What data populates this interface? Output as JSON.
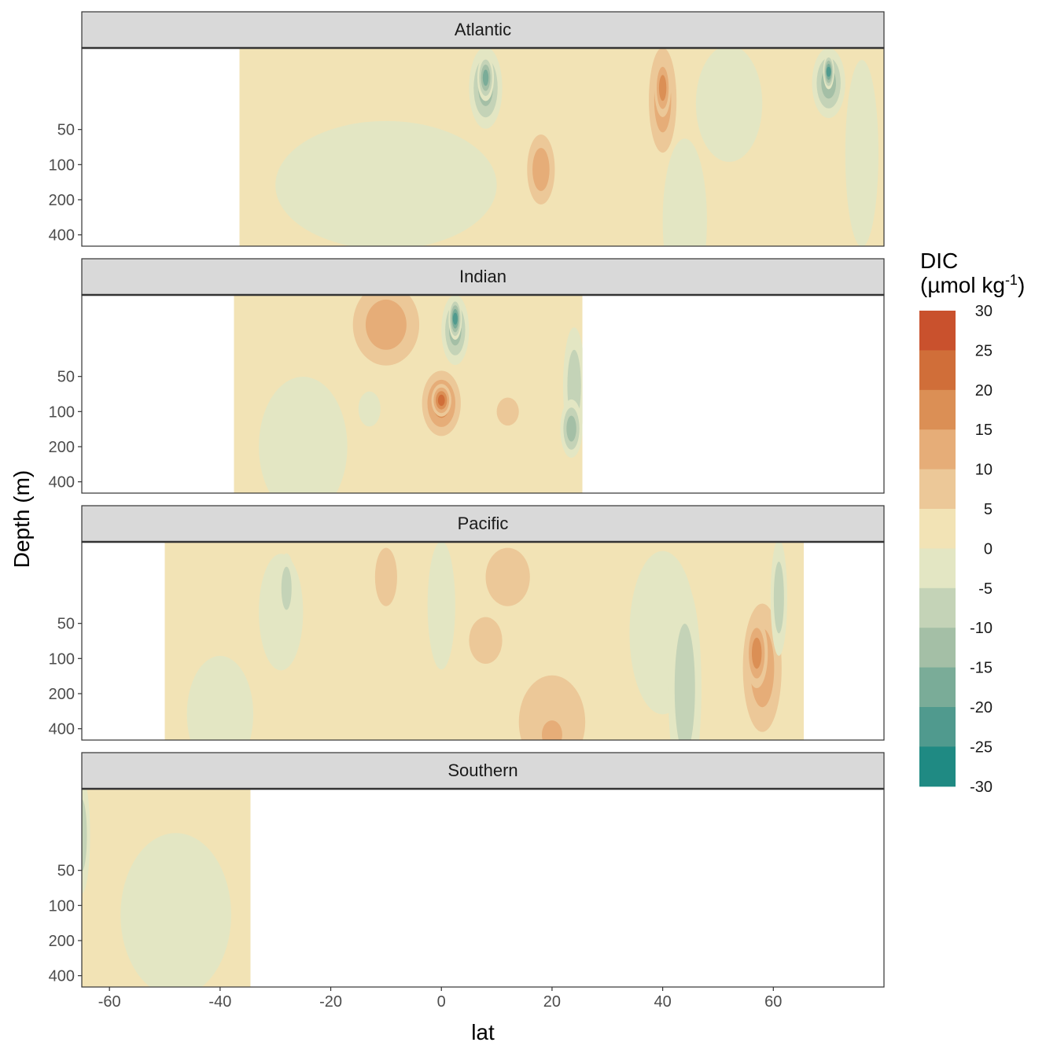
{
  "chart_data": {
    "type": "heatmap",
    "subtype": "filled-contour",
    "xlabel": "lat",
    "ylabel": "Depth (m)",
    "x_ticks": [
      -60,
      -40,
      -20,
      0,
      20,
      40,
      60
    ],
    "x_tick_labels": [
      "-60",
      "-40",
      "-20",
      "0",
      "20",
      "40",
      "60"
    ],
    "xlim": [
      -65,
      80
    ],
    "y_ticks": [
      50,
      100,
      200,
      400
    ],
    "y_tick_labels": [
      "50",
      "100",
      "200",
      "400"
    ],
    "y_scale": "log",
    "ylim": [
      10,
      500
    ],
    "y_reversed": true,
    "legend": {
      "title_line1": "DIC",
      "title_line2_prefix": "(µmol kg",
      "title_line2_sup": "-1",
      "title_line2_suffix": ")",
      "breaks": [
        30,
        25,
        20,
        15,
        10,
        5,
        0,
        -5,
        -10,
        -15,
        -20,
        -25,
        -30
      ],
      "break_labels": [
        "30",
        "25",
        "20",
        "15",
        "10",
        "5",
        "0",
        "-5",
        "-10",
        "-15",
        "-20",
        "-25",
        "-30"
      ],
      "colors": [
        "#c9512d",
        "#d06e39",
        "#db8f55",
        "#e6ad78",
        "#ecc898",
        "#f2e3b5",
        "#e3e6c3",
        "#c4d3b7",
        "#a4bfa6",
        "#7aac98",
        "#509a8e",
        "#1f8a83"
      ],
      "placement": "right"
    },
    "colors": {
      "base_positive": "#f2e3b5",
      "base_negative": "#e3e6c3",
      "panel_border": "#333333",
      "strip_fill": "#d9d9d9"
    },
    "facets": [
      {
        "name": "Atlantic",
        "lat_range": [
          -36.5,
          80
        ],
        "features": [
          {
            "lat": -10,
            "depth": 150,
            "dlat": 20,
            "ddepth": 0.55,
            "level": -1
          },
          {
            "lat": 8,
            "depth": 22,
            "dlat": 3,
            "ddepth": 0.35,
            "level": -3
          },
          {
            "lat": 8,
            "depth": 18,
            "dlat": 1.5,
            "ddepth": 0.2,
            "level": -4
          },
          {
            "lat": 18,
            "depth": 110,
            "dlat": 2.5,
            "ddepth": 0.3,
            "level": 2
          },
          {
            "lat": 40,
            "depth": 28,
            "dlat": 2.5,
            "ddepth": 0.45,
            "level": 2
          },
          {
            "lat": 40,
            "depth": 22,
            "dlat": 1.5,
            "ddepth": 0.25,
            "level": 3
          },
          {
            "lat": 44,
            "depth": 300,
            "dlat": 4,
            "ddepth": 0.7,
            "level": -1
          },
          {
            "lat": 52,
            "depth": 30,
            "dlat": 6,
            "ddepth": 0.5,
            "level": -1
          },
          {
            "lat": 70,
            "depth": 20,
            "dlat": 3,
            "ddepth": 0.3,
            "level": -3
          },
          {
            "lat": 70,
            "depth": 16,
            "dlat": 1,
            "ddepth": 0.15,
            "level": -5
          },
          {
            "lat": 76,
            "depth": 80,
            "dlat": 3,
            "ddepth": 0.8,
            "level": -1
          }
        ]
      },
      {
        "name": "Indian",
        "lat_range": [
          -37.5,
          25.5
        ],
        "features": [
          {
            "lat": -10,
            "depth": 18,
            "dlat": 6,
            "ddepth": 0.35,
            "level": 2
          },
          {
            "lat": -25,
            "depth": 200,
            "dlat": 8,
            "ddepth": 0.6,
            "level": -1
          },
          {
            "lat": 2.5,
            "depth": 20,
            "dlat": 2.5,
            "ddepth": 0.3,
            "level": -3
          },
          {
            "lat": 2.5,
            "depth": 16,
            "dlat": 1.2,
            "ddepth": 0.18,
            "level": -5
          },
          {
            "lat": 0,
            "depth": 85,
            "dlat": 3.5,
            "ddepth": 0.28,
            "level": 3
          },
          {
            "lat": 0,
            "depth": 80,
            "dlat": 1.8,
            "ddepth": 0.14,
            "level": 4
          },
          {
            "lat": 12,
            "depth": 100,
            "dlat": 2,
            "ddepth": 0.12,
            "level": 1
          },
          {
            "lat": 24,
            "depth": 60,
            "dlat": 2,
            "ddepth": 0.5,
            "level": -2
          },
          {
            "lat": 23.5,
            "depth": 140,
            "dlat": 2,
            "ddepth": 0.25,
            "level": -3
          },
          {
            "lat": -13,
            "depth": 95,
            "dlat": 2,
            "ddepth": 0.15,
            "level": -1
          }
        ]
      },
      {
        "name": "Pacific",
        "lat_range": [
          -50,
          65.5
        ],
        "features": [
          {
            "lat": -29,
            "depth": 40,
            "dlat": 4,
            "ddepth": 0.5,
            "level": -1
          },
          {
            "lat": -28,
            "depth": 25,
            "dlat": 1.5,
            "ddepth": 0.3,
            "level": -2
          },
          {
            "lat": 0,
            "depth": 35,
            "dlat": 2.5,
            "ddepth": 0.55,
            "level": -1
          },
          {
            "lat": -10,
            "depth": 20,
            "dlat": 2,
            "ddepth": 0.25,
            "level": 1
          },
          {
            "lat": 12,
            "depth": 20,
            "dlat": 4,
            "ddepth": 0.25,
            "level": 1
          },
          {
            "lat": 8,
            "depth": 70,
            "dlat": 3,
            "ddepth": 0.2,
            "level": 1
          },
          {
            "lat": 20,
            "depth": 350,
            "dlat": 6,
            "ddepth": 0.4,
            "level": 1
          },
          {
            "lat": 20,
            "depth": 450,
            "dlat": 3,
            "ddepth": 0.2,
            "level": 2
          },
          {
            "lat": 40,
            "depth": 60,
            "dlat": 6,
            "ddepth": 0.7,
            "level": -1
          },
          {
            "lat": 44,
            "depth": 180,
            "dlat": 3,
            "ddepth": 0.9,
            "level": -2
          },
          {
            "lat": 58,
            "depth": 120,
            "dlat": 3.5,
            "ddepth": 0.55,
            "level": 2
          },
          {
            "lat": 57,
            "depth": 90,
            "dlat": 2,
            "ddepth": 0.3,
            "level": 3
          },
          {
            "lat": 61,
            "depth": 30,
            "dlat": 1.5,
            "ddepth": 0.5,
            "level": -2
          },
          {
            "lat": -40,
            "depth": 300,
            "dlat": 6,
            "ddepth": 0.5,
            "level": -1
          }
        ]
      },
      {
        "name": "Southern",
        "lat_range": [
          -65,
          -34.5
        ],
        "features": [
          {
            "lat": -48,
            "depth": 120,
            "dlat": 10,
            "ddepth": 0.7,
            "level": -1
          },
          {
            "lat": -65,
            "depth": 25,
            "dlat": 1.5,
            "ddepth": 0.5,
            "level": -2
          }
        ]
      }
    ]
  }
}
